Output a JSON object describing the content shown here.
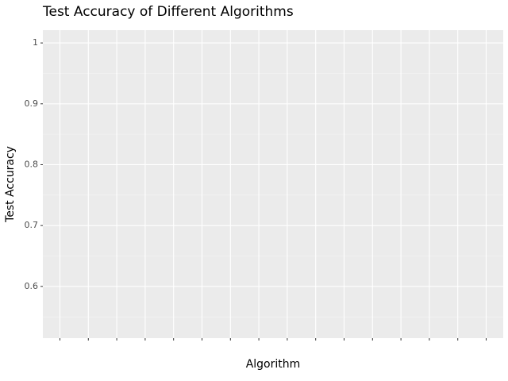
{
  "chart_data": {
    "type": "bar",
    "title": "Test Accuracy of Different Algorithms",
    "xlabel": "Algorithm",
    "ylabel": "Test Accuracy",
    "categories": [
      null,
      null,
      null,
      null,
      null,
      null,
      null,
      null,
      null,
      null,
      null,
      null,
      null,
      null,
      null,
      null
    ],
    "values": [
      null,
      null,
      null,
      null,
      null,
      null,
      null,
      null,
      null,
      null,
      null,
      null,
      null,
      null,
      null,
      null
    ],
    "color": "#595959",
    "ylim": [
      0.515,
      1.021
    ],
    "yticks": [
      0.6,
      0.7,
      0.8,
      0.9,
      1
    ],
    "grid": true
  }
}
